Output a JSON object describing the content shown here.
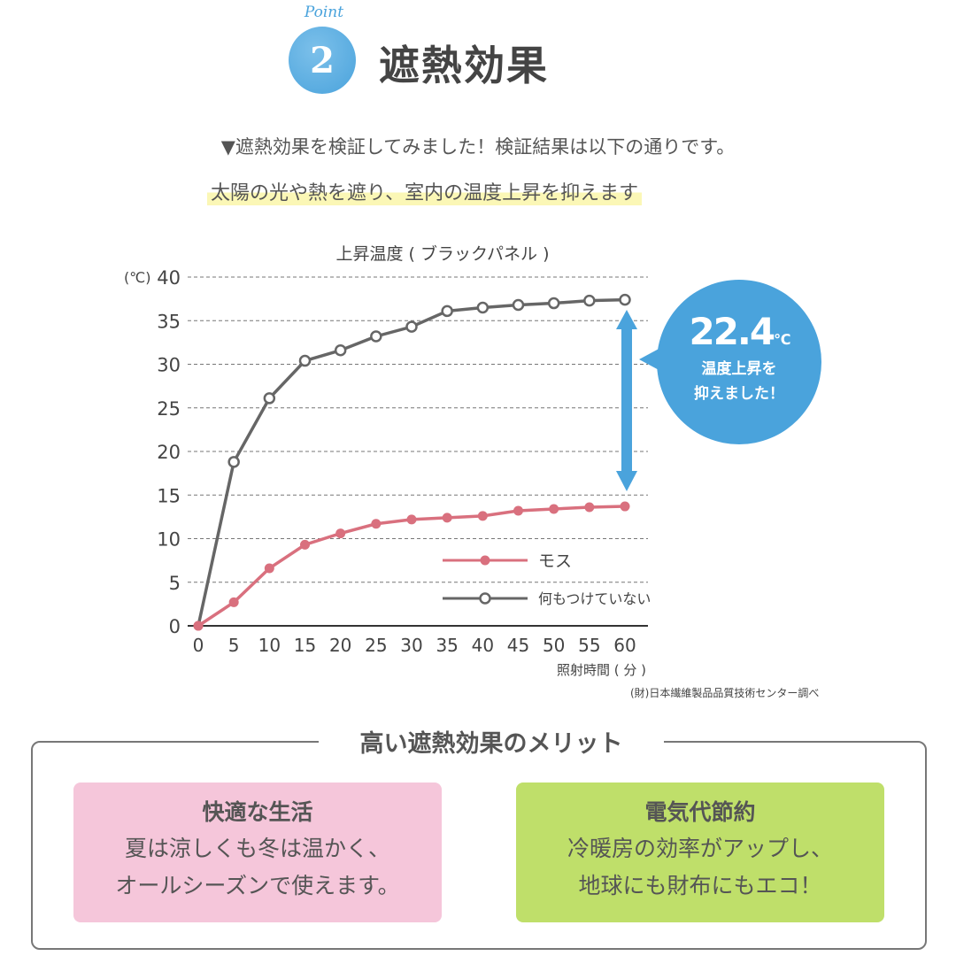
{
  "header": {
    "point_label": "Point",
    "point_number": "2",
    "title": "遮熱効果"
  },
  "intro": "▼遮熱効果を検証してみました！検証結果は以下の通りです。",
  "tagline": "太陽の光や熱を遮り、室内の温度上昇を抑えます",
  "callout": {
    "value": "22.4",
    "unit": "℃",
    "message_line1": "温度上昇を",
    "message_line2": "抑えました！",
    "color": "#4aa3dc"
  },
  "source": "(財)日本繊維製品品質技術センター調べ",
  "chart_data": {
    "type": "line",
    "title": "上昇温度 ( ブラックパネル )",
    "ylabel": "(℃)",
    "xlabel": "照射時間 ( 分 )",
    "ylim": [
      0,
      40
    ],
    "xlim": [
      0,
      60
    ],
    "yticks": [
      0,
      5,
      10,
      15,
      20,
      25,
      30,
      35,
      40
    ],
    "x": [
      0,
      5,
      10,
      15,
      20,
      25,
      30,
      35,
      40,
      45,
      50,
      55,
      60
    ],
    "grid": true,
    "legend_position": "bottom-right",
    "series": [
      {
        "name": "モス",
        "color": "#d9707e",
        "marker": "filled-circle",
        "values": [
          0,
          2.7,
          6.6,
          9.3,
          10.6,
          11.7,
          12.2,
          12.4,
          12.6,
          13.2,
          13.4,
          13.6,
          13.7
        ]
      },
      {
        "name": "何もつけていない",
        "color": "#666666",
        "marker": "open-circle",
        "values": [
          0,
          18.8,
          26.1,
          30.4,
          31.6,
          33.2,
          34.3,
          36.1,
          36.5,
          36.8,
          37.0,
          37.3,
          37.4
        ]
      }
    ]
  },
  "merits": {
    "title": "高い遮熱効果のメリット",
    "cards": [
      {
        "title": "快適な生活",
        "line1": "夏は涼しくも冬は温かく、",
        "line2": "オールシーズンで使えます。",
        "color": "#f5c6da"
      },
      {
        "title": "電気代節約",
        "line1": "冷暖房の効率がアップし、",
        "line2": "地球にも財布にもエコ！",
        "color": "#bfdf6a"
      }
    ]
  }
}
